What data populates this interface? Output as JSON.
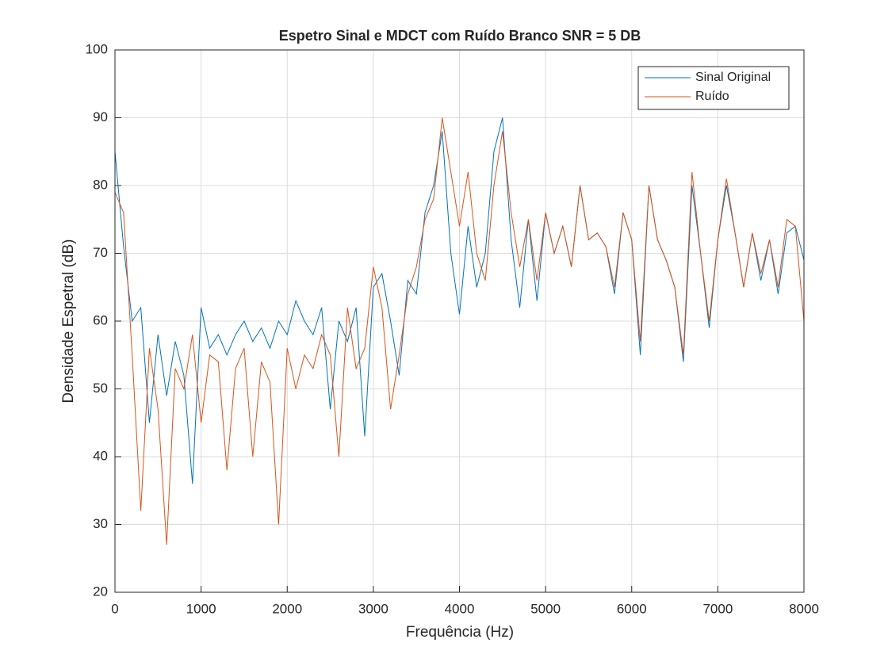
{
  "chart_data": {
    "type": "line",
    "title": "Espetro Sinal e MDCT com Ruído Branco SNR = 5 DB",
    "xlabel": "Frequência (Hz)",
    "ylabel": "Densidade Espetral (dB)",
    "x": [
      0,
      100,
      200,
      300,
      400,
      500,
      600,
      700,
      800,
      900,
      1000,
      1100,
      1200,
      1300,
      1400,
      1500,
      1600,
      1700,
      1800,
      1900,
      2000,
      2100,
      2200,
      2300,
      2400,
      2500,
      2600,
      2700,
      2800,
      2900,
      3000,
      3100,
      3200,
      3300,
      3400,
      3500,
      3600,
      3700,
      3800,
      3900,
      4000,
      4100,
      4200,
      4300,
      4400,
      4500,
      4600,
      4700,
      4800,
      4900,
      5000,
      5100,
      5200,
      5300,
      5400,
      5500,
      5600,
      5700,
      5800,
      5900,
      6000,
      6100,
      6200,
      6300,
      6400,
      6500,
      6600,
      6700,
      6800,
      6900,
      7000,
      7100,
      7200,
      7300,
      7400,
      7500,
      7600,
      7700,
      7800,
      7900,
      8000
    ],
    "series": [
      {
        "name": "Sinal Original",
        "color": "#0072BD",
        "values": [
          85,
          71,
          60,
          62,
          45,
          58,
          49,
          57,
          52,
          36,
          62,
          56,
          58,
          55,
          58,
          60,
          57,
          59,
          56,
          60,
          58,
          63,
          60,
          58,
          62,
          47,
          60,
          57,
          62,
          43,
          65,
          67,
          60,
          52,
          66,
          64,
          76,
          80,
          88,
          70,
          61,
          74,
          65,
          70,
          85,
          90,
          72,
          62,
          75,
          63,
          76,
          70,
          74,
          68,
          80,
          72,
          73,
          71,
          64,
          76,
          72,
          55,
          80,
          72,
          69,
          65,
          54,
          80,
          70,
          59,
          72,
          80,
          73,
          65,
          73,
          66,
          72,
          64,
          73,
          74,
          69
        ]
      },
      {
        "name": "Ruído",
        "color": "#D95319",
        "values": [
          79,
          76,
          55,
          32,
          56,
          47,
          27,
          53,
          50,
          58,
          45,
          55,
          54,
          38,
          53,
          56,
          40,
          54,
          51,
          30,
          56,
          50,
          55,
          53,
          58,
          55,
          40,
          62,
          53,
          56,
          68,
          62,
          47,
          55,
          64,
          68,
          75,
          78,
          90,
          82,
          74,
          82,
          70,
          66,
          80,
          88,
          76,
          68,
          75,
          66,
          76,
          70,
          74,
          68,
          80,
          72,
          73,
          71,
          65,
          76,
          72,
          57,
          80,
          72,
          69,
          65,
          55,
          82,
          70,
          60,
          72,
          81,
          73,
          65,
          73,
          67,
          72,
          65,
          75,
          74,
          60
        ]
      }
    ],
    "xlim": [
      0,
      8000
    ],
    "ylim": [
      20,
      100
    ],
    "xticks": [
      0,
      1000,
      2000,
      3000,
      4000,
      5000,
      6000,
      7000,
      8000
    ],
    "yticks": [
      20,
      30,
      40,
      50,
      60,
      70,
      80,
      90,
      100
    ],
    "grid": true,
    "legend": "upper right"
  }
}
